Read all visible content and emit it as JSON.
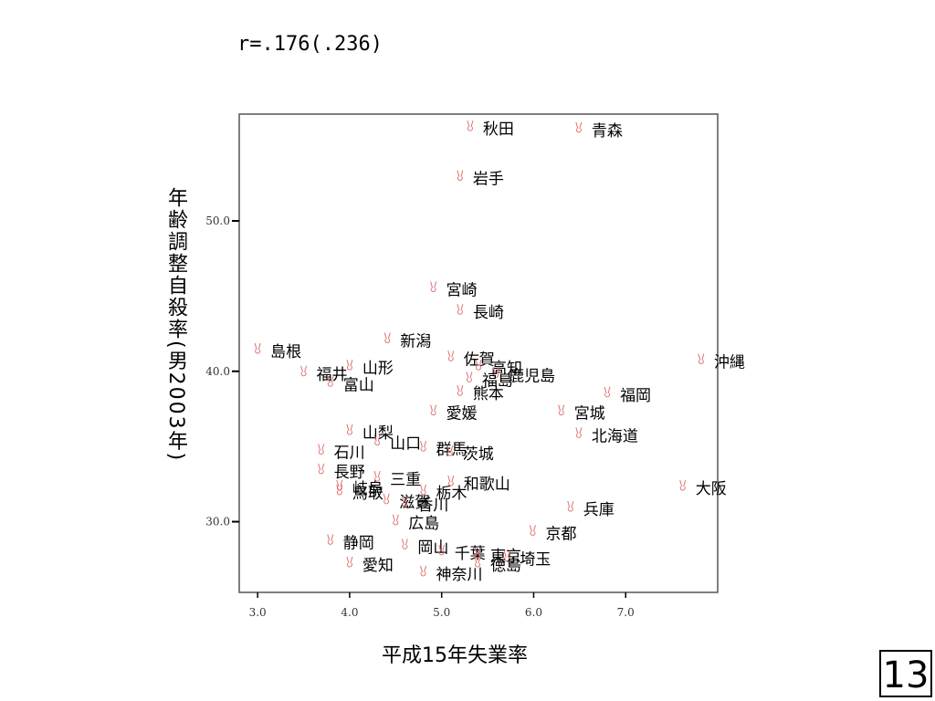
{
  "chart_data": {
    "type": "scatter",
    "title": "r=.176(.236)",
    "x_label": "平成15年失業率",
    "y_label": "年齢調整自殺率(男2003年)",
    "xlim": [
      2.8,
      8.0
    ],
    "ylim": [
      25.3,
      57.1
    ],
    "xticks": [
      {
        "value": 3,
        "label": "3.0"
      },
      {
        "value": 4,
        "label": "4.0"
      },
      {
        "value": 5,
        "label": "5.0"
      },
      {
        "value": 6,
        "label": "6.0"
      },
      {
        "value": 7,
        "label": "7.0"
      }
    ],
    "yticks": [
      {
        "value": 30,
        "label": "30.0"
      },
      {
        "value": 40,
        "label": "40.0"
      },
      {
        "value": 50,
        "label": "50.0"
      }
    ],
    "color": "#e07070",
    "points": [
      {
        "label": "秋田",
        "x": 5.31,
        "y": 56.3
      },
      {
        "label": "青森",
        "x": 6.49,
        "y": 56.2
      },
      {
        "label": "岩手",
        "x": 5.2,
        "y": 53.0
      },
      {
        "label": "宮崎",
        "x": 4.91,
        "y": 45.6
      },
      {
        "label": "長崎",
        "x": 5.2,
        "y": 44.1
      },
      {
        "label": "新潟",
        "x": 4.41,
        "y": 42.2
      },
      {
        "label": "佐賀",
        "x": 5.1,
        "y": 41.0
      },
      {
        "label": "沖縄",
        "x": 7.82,
        "y": 40.8
      },
      {
        "label": "島根",
        "x": 3.0,
        "y": 41.5
      },
      {
        "label": "福井",
        "x": 3.5,
        "y": 40.0
      },
      {
        "label": "山形",
        "x": 4.0,
        "y": 40.4
      },
      {
        "label": "富山",
        "x": 3.79,
        "y": 39.3
      },
      {
        "label": "高知",
        "x": 5.4,
        "y": 40.4
      },
      {
        "label": "鹿児島",
        "x": 5.59,
        "y": 39.9
      },
      {
        "label": "福島",
        "x": 5.3,
        "y": 39.6
      },
      {
        "label": "熊本",
        "x": 5.2,
        "y": 38.7
      },
      {
        "label": "福岡",
        "x": 6.8,
        "y": 38.6
      },
      {
        "label": "宮城",
        "x": 6.3,
        "y": 37.4
      },
      {
        "label": "愛媛",
        "x": 4.91,
        "y": 37.4
      },
      {
        "label": "北海道",
        "x": 6.49,
        "y": 35.9
      },
      {
        "label": "山梨",
        "x": 4.0,
        "y": 36.1
      },
      {
        "label": "山口",
        "x": 4.3,
        "y": 35.4
      },
      {
        "label": "群馬",
        "x": 4.8,
        "y": 35.0
      },
      {
        "label": "石川",
        "x": 3.69,
        "y": 34.8
      },
      {
        "label": "茨城",
        "x": 5.09,
        "y": 34.7
      },
      {
        "label": "長野",
        "x": 3.69,
        "y": 33.5
      },
      {
        "label": "大阪",
        "x": 7.62,
        "y": 32.4
      },
      {
        "label": "三重",
        "x": 4.3,
        "y": 33.0
      },
      {
        "label": "和歌山",
        "x": 5.1,
        "y": 32.7
      },
      {
        "label": "岐阜",
        "x": 3.89,
        "y": 32.4
      },
      {
        "label": "鳥取",
        "x": 3.89,
        "y": 32.1
      },
      {
        "label": "栃木",
        "x": 4.8,
        "y": 32.1
      },
      {
        "label": "滋賀",
        "x": 4.4,
        "y": 31.5
      },
      {
        "label": "香川",
        "x": 4.6,
        "y": 31.3
      },
      {
        "label": "兵庫",
        "x": 6.4,
        "y": 31.0
      },
      {
        "label": "広島",
        "x": 4.5,
        "y": 30.1
      },
      {
        "label": "京都",
        "x": 5.99,
        "y": 29.4
      },
      {
        "label": "静岡",
        "x": 3.79,
        "y": 28.8
      },
      {
        "label": "岡山",
        "x": 4.6,
        "y": 28.5
      },
      {
        "label": "千葉",
        "x": 5.0,
        "y": 28.1
      },
      {
        "label": "東京",
        "x": 5.39,
        "y": 27.9
      },
      {
        "label": "埼玉",
        "x": 5.71,
        "y": 27.7
      },
      {
        "label": "徳島",
        "x": 5.39,
        "y": 27.3
      },
      {
        "label": "神奈川",
        "x": 4.8,
        "y": 26.7
      },
      {
        "label": "愛知",
        "x": 4.0,
        "y": 27.3
      }
    ]
  },
  "page_number": "13"
}
